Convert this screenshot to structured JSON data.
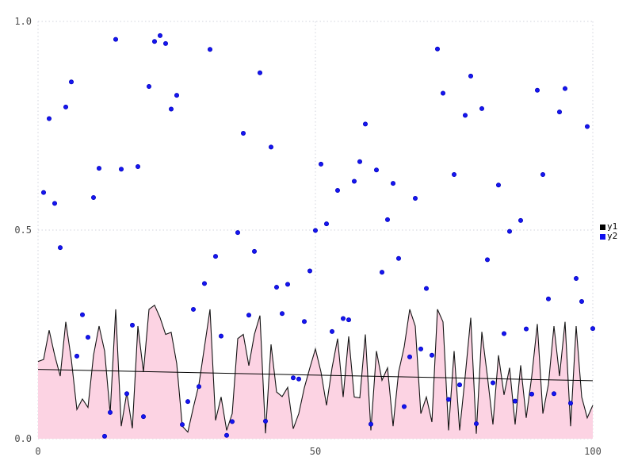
{
  "chart_data": {
    "type": "mixed",
    "title": "",
    "xlabel": "",
    "ylabel": "",
    "xlim": [
      0,
      100
    ],
    "ylim": [
      0.0,
      1.0
    ],
    "grid": "dotted",
    "legend_position": "right-outside",
    "x_ticks": [
      {
        "value": 0,
        "label": "0"
      },
      {
        "value": 50,
        "label": "50"
      },
      {
        "value": 100,
        "label": "100"
      }
    ],
    "y_ticks": [
      {
        "value": 0.0,
        "label": "0.0"
      },
      {
        "value": 0.5,
        "label": "0.5"
      },
      {
        "value": 1.0,
        "label": "1.0"
      }
    ],
    "legend": [
      {
        "label": "y1",
        "color": "#000000"
      },
      {
        "label": "y2",
        "color": "#0f0fef"
      }
    ],
    "series": [
      {
        "name": "y1",
        "type": "area",
        "fill_color": "#fcd3e3",
        "line_color": "#141414",
        "x_start": 0,
        "x_step": 1,
        "values": [
          0.185,
          0.19,
          0.26,
          0.2,
          0.15,
          0.28,
          0.19,
          0.07,
          0.095,
          0.075,
          0.2,
          0.27,
          0.21,
          0.06,
          0.31,
          0.03,
          0.11,
          0.025,
          0.27,
          0.16,
          0.31,
          0.32,
          0.29,
          0.25,
          0.255,
          0.18,
          0.03,
          0.016,
          0.075,
          0.13,
          0.22,
          0.31,
          0.044,
          0.1,
          0.02,
          0.06,
          0.24,
          0.25,
          0.175,
          0.25,
          0.295,
          0.013,
          0.226,
          0.112,
          0.101,
          0.123,
          0.024,
          0.06,
          0.122,
          0.17,
          0.215,
          0.16,
          0.08,
          0.17,
          0.24,
          0.1,
          0.245,
          0.1,
          0.098,
          0.25,
          0.02,
          0.21,
          0.14,
          0.17,
          0.03,
          0.16,
          0.22,
          0.31,
          0.27,
          0.06,
          0.1,
          0.04,
          0.31,
          0.28,
          0.02,
          0.21,
          0.02,
          0.15,
          0.29,
          0.012,
          0.256,
          0.15,
          0.034,
          0.2,
          0.105,
          0.17,
          0.034,
          0.176,
          0.05,
          0.15,
          0.275,
          0.06,
          0.13,
          0.27,
          0.15,
          0.28,
          0.03,
          0.27,
          0.1,
          0.05,
          0.08
        ]
      },
      {
        "name": "y2",
        "type": "scatter",
        "dot_fill": "#1616f0",
        "dot_edge": "#0000c0",
        "x_start": 1,
        "x_step": 1,
        "values": [
          0.59,
          0.767,
          0.564,
          0.458,
          0.795,
          0.855,
          0.198,
          0.297,
          0.243,
          0.578,
          0.648,
          0.006,
          0.063,
          0.957,
          0.646,
          0.108,
          0.272,
          0.652,
          0.053,
          0.844,
          0.952,
          0.966,
          0.947,
          0.79,
          0.823,
          0.034,
          0.089,
          0.31,
          0.125,
          0.372,
          0.933,
          0.437,
          0.246,
          0.008,
          0.041,
          0.494,
          0.732,
          0.296,
          0.449,
          0.877,
          0.042,
          0.699,
          0.363,
          0.3,
          0.37,
          0.146,
          0.143,
          0.281,
          0.402,
          0.499,
          0.658,
          0.515,
          0.257,
          0.595,
          0.288,
          0.285,
          0.617,
          0.664,
          0.754,
          0.035,
          0.644,
          0.399,
          0.525,
          0.612,
          0.432,
          0.077,
          0.196,
          0.576,
          0.215,
          0.36,
          0.2,
          0.934,
          0.828,
          0.094,
          0.633,
          0.129,
          0.775,
          0.869,
          0.036,
          0.791,
          0.429,
          0.134,
          0.608,
          0.252,
          0.497,
          0.09,
          0.523,
          0.263,
          0.107,
          0.835,
          0.633,
          0.335,
          0.108,
          0.783,
          0.839,
          0.085,
          0.384,
          0.329,
          0.748,
          0.264
        ]
      },
      {
        "name": "trend",
        "type": "line",
        "line_color": "#000000",
        "x": [
          0,
          100
        ],
        "values": [
          0.166,
          0.139
        ]
      }
    ],
    "colors": {
      "grid": "#d2d3dc",
      "tick_label": "#4d4d4d",
      "background": "#ffffff"
    }
  }
}
